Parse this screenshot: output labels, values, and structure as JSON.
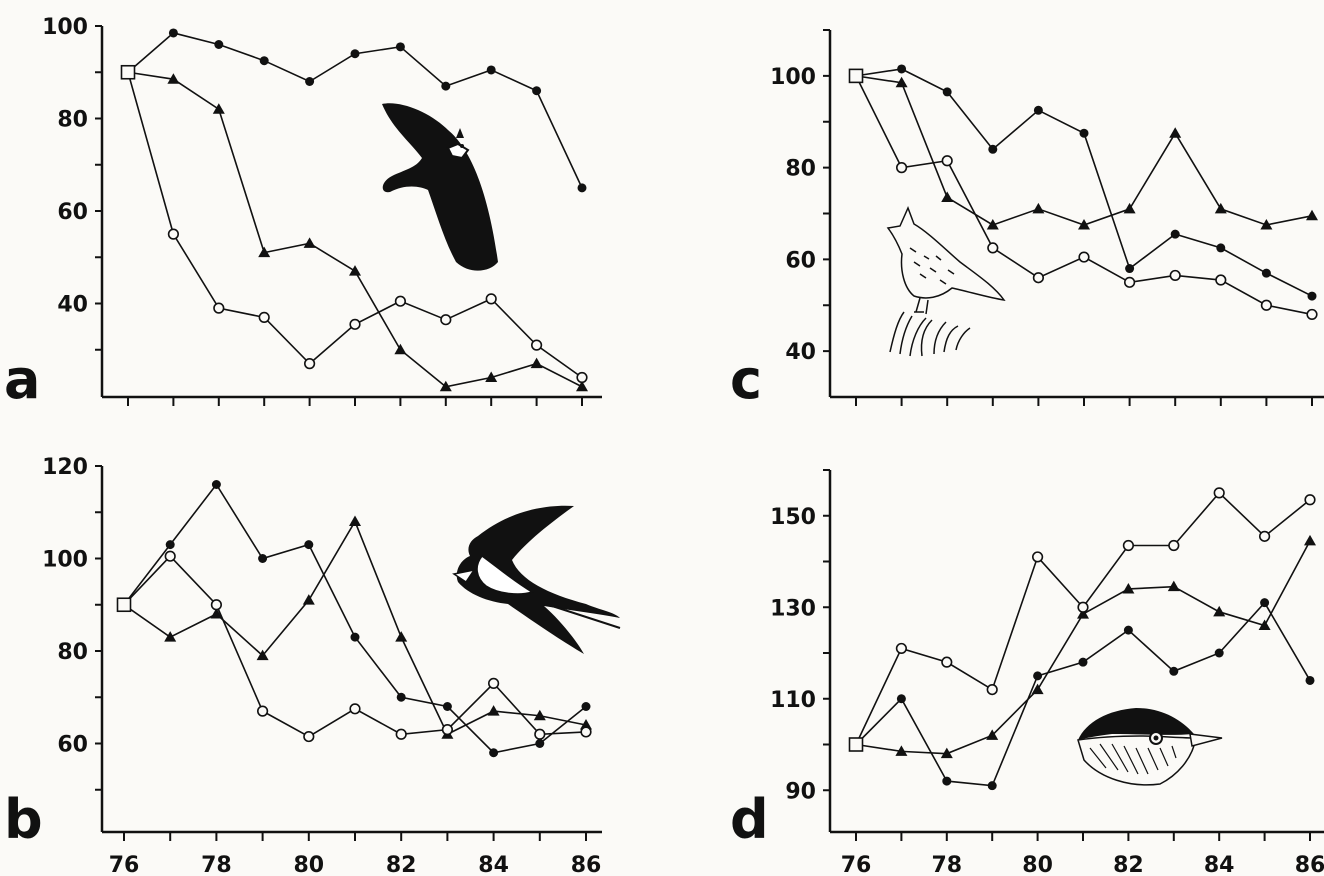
{
  "panel_labels": [
    "a",
    "b",
    "c",
    "d"
  ],
  "chart_data": [
    {
      "panel": "a",
      "type": "line",
      "x": [
        76,
        77,
        78,
        79,
        80,
        81,
        82,
        83,
        84,
        85,
        86
      ],
      "x_ticks": [
        76,
        78,
        80,
        82,
        84,
        86
      ],
      "y_ticks": [
        40,
        60,
        80,
        100
      ],
      "ylim": [
        20,
        100
      ],
      "series": [
        {
          "marker": "filled-circle",
          "values": [
            90,
            98.5,
            96,
            92.5,
            88,
            94,
            95.5,
            87,
            90.5,
            86,
            65
          ]
        },
        {
          "marker": "filled-triangle",
          "values": [
            90,
            88.5,
            82,
            51,
            53,
            47,
            30,
            22,
            24,
            27,
            22
          ]
        },
        {
          "marker": "open-circle",
          "values": [
            90,
            55,
            39,
            37,
            27,
            35.5,
            40.5,
            36.5,
            41,
            31,
            24
          ]
        }
      ],
      "start_marker": "open-square",
      "illustration": "lapwing-in-flight"
    },
    {
      "panel": "b",
      "type": "line",
      "x": [
        76,
        77,
        78,
        79,
        80,
        81,
        82,
        83,
        84,
        85,
        86
      ],
      "x_ticks": [
        76,
        78,
        80,
        82,
        84,
        86
      ],
      "y_ticks": [
        60,
        80,
        100,
        120
      ],
      "ylim": [
        40,
        120
      ],
      "series": [
        {
          "marker": "filled-circle",
          "values": [
            90,
            103,
            116,
            100,
            103,
            83,
            70,
            68,
            58,
            60,
            68
          ]
        },
        {
          "marker": "filled-triangle",
          "values": [
            90,
            83,
            88,
            79,
            91,
            108,
            83,
            62,
            67,
            66,
            64
          ]
        },
        {
          "marker": "open-circle",
          "values": [
            90,
            100.5,
            90,
            67,
            61.5,
            67.5,
            62,
            63,
            73,
            62,
            62.5
          ]
        }
      ],
      "start_marker": "open-square",
      "illustration": "swallow-in-flight"
    },
    {
      "panel": "c",
      "type": "line",
      "x": [
        76,
        77,
        78,
        79,
        80,
        81,
        82,
        83,
        84,
        85,
        86
      ],
      "x_ticks": [
        76,
        78,
        80,
        82,
        84,
        86
      ],
      "y_ticks": [
        40,
        60,
        80,
        100
      ],
      "ylim": [
        30,
        110
      ],
      "series": [
        {
          "marker": "filled-circle",
          "values": [
            100,
            101.5,
            96.5,
            84,
            92.5,
            87.5,
            58,
            65.5,
            62.5,
            57,
            52
          ]
        },
        {
          "marker": "filled-triangle",
          "values": [
            100,
            98.5,
            73.5,
            67.5,
            71,
            67.5,
            71,
            87.5,
            71,
            67.5,
            69.5
          ]
        },
        {
          "marker": "open-circle",
          "values": [
            100,
            80,
            81.5,
            62.5,
            56,
            60.5,
            55,
            56.5,
            55.5,
            50,
            48
          ]
        }
      ],
      "start_marker": "open-square",
      "illustration": "skylark-on-grass"
    },
    {
      "panel": "d",
      "type": "line",
      "x": [
        76,
        77,
        78,
        79,
        80,
        81,
        82,
        83,
        84,
        85,
        86
      ],
      "x_ticks": [
        76,
        78,
        80,
        82,
        84,
        86
      ],
      "y_ticks": [
        90,
        110,
        130,
        150
      ],
      "ylim": [
        80,
        160
      ],
      "series": [
        {
          "marker": "filled-circle",
          "values": [
            100,
            110,
            92,
            91,
            115,
            118,
            125,
            116,
            120,
            131,
            114
          ]
        },
        {
          "marker": "filled-triangle",
          "values": [
            100,
            98.5,
            98,
            102,
            112,
            128.5,
            134,
            134.5,
            129,
            126,
            144.5
          ]
        },
        {
          "marker": "open-circle",
          "values": [
            100,
            121,
            118,
            112,
            141,
            130,
            143.5,
            143.5,
            155,
            145.5,
            153.5
          ]
        }
      ],
      "start_marker": "open-square",
      "illustration": "blackcap-head"
    }
  ]
}
